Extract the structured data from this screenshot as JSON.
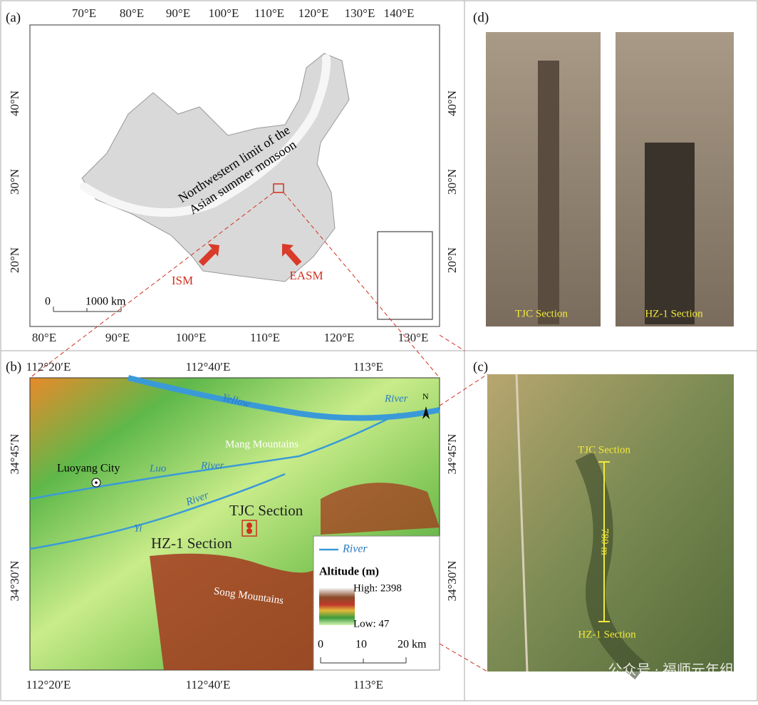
{
  "panels": {
    "a": {
      "label": "(a)",
      "lon_top": [
        "70°E",
        "80°E",
        "90°E",
        "100°E",
        "110°E",
        "120°E",
        "130°E",
        "140°E"
      ],
      "lon_bottom": [
        "80°E",
        "90°E",
        "100°E",
        "110°E",
        "120°E",
        "130°E"
      ],
      "lat_left": [
        "40°N",
        "30°N",
        "20°N"
      ],
      "lat_right": [
        "40°N",
        "30°N",
        "20°N"
      ],
      "monsoon_limit": [
        "Northwestern  limit of the",
        "Asian summer monsoon"
      ],
      "arrows": [
        "ISM",
        "EASM"
      ],
      "scale": [
        "0",
        "1000 km"
      ]
    },
    "b": {
      "label": "(b)",
      "lon_top": [
        "112°20′E",
        "112°40′E",
        "113°E"
      ],
      "lon_bottom": [
        "112°20′E",
        "112°40′E",
        "113°E"
      ],
      "lat_left": [
        "34°45′N",
        "34°30′N"
      ],
      "lat_right": [
        "34°45′N",
        "34°30′N"
      ],
      "places": {
        "yellow": "Yellow",
        "yellow_river": "River",
        "mang": "Mang Mountains",
        "city": "Luoyang City",
        "luo": "Luo",
        "luo_river": "River",
        "yi_river": "River",
        "yi": "Yi",
        "song": "Song Mountains",
        "tjc": "TJC Section",
        "hz": "HZ-1 Section",
        "north": "N"
      },
      "legend": {
        "river": "River",
        "altitude": "Altitude (m)",
        "high": "High: 2398",
        "low": "Low: 47"
      },
      "scale": [
        "0",
        "10",
        "20 km"
      ]
    },
    "c": {
      "label": "(c)",
      "tjc": "TJC  Section",
      "distance": "780 m",
      "hz": "HZ-1 Section"
    },
    "d": {
      "label": "(d)",
      "tjc": "TJC  Section",
      "hz": "HZ-1  Section"
    },
    "watermark": "公众号 · 福师元年组"
  }
}
